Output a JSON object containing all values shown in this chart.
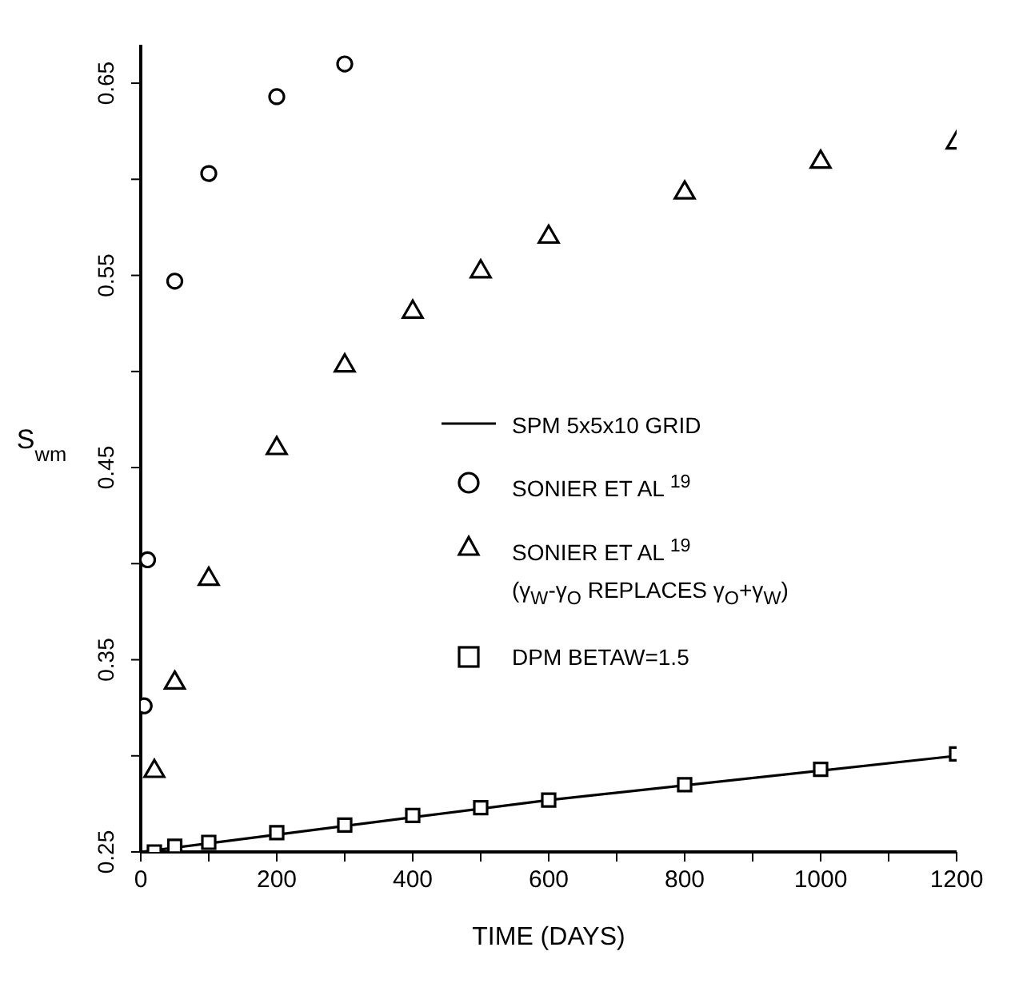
{
  "chart_data": {
    "type": "scatter",
    "xlabel": "TIME  (DAYS)",
    "ylabel": "S$_{wm}$",
    "xlim": [
      0,
      1200
    ],
    "ylim": [
      0.25,
      0.67
    ],
    "xticks": [
      0,
      {
        "value": 100,
        "label": null
      },
      200,
      {
        "value": 300,
        "label": null
      },
      400,
      {
        "value": 500,
        "label": null
      },
      600,
      {
        "value": 700,
        "label": null
      },
      800,
      {
        "value": 900,
        "label": null
      },
      1000,
      {
        "value": 1100,
        "label": null
      },
      1200
    ],
    "yticks": [
      {
        "value": 0.25,
        "label": "0.25"
      },
      {
        "value": 0.3,
        "label": null
      },
      {
        "value": 0.35,
        "label": "0.35"
      },
      {
        "value": 0.4,
        "label": null
      },
      {
        "value": 0.45,
        "label": "0.45"
      },
      {
        "value": 0.5,
        "label": null
      },
      {
        "value": 0.55,
        "label": "0.55"
      },
      {
        "value": 0.6,
        "label": null
      },
      {
        "value": 0.65,
        "label": "0.65"
      }
    ],
    "grid": false,
    "legend": "center right",
    "series": [
      {
        "name": "SPM 5x5x10 GRID",
        "type": "line",
        "marker": "none",
        "line_style": "solid",
        "color": "#000000",
        "x": [
          0,
          200,
          600,
          1200
        ],
        "values": [
          0.25,
          0.259,
          0.277,
          0.3
        ]
      },
      {
        "name": "SONIER ET AL $^{19}$",
        "marker": "circle",
        "color": "#000000",
        "x": [
          5,
          10,
          50,
          100,
          200,
          300
        ],
        "values": [
          0.326,
          0.402,
          0.547,
          0.603,
          0.643,
          0.66
        ]
      },
      {
        "name": "SONIER ET AL $^{19}$\n(γ$_{W}$-γ$_{O}$ REPLACES γ$_{O}$+γ$_{W}$)",
        "marker": "triangle",
        "color": "#000000",
        "x": [
          20,
          50,
          100,
          200,
          300,
          400,
          500,
          600,
          800,
          1000,
          1200
        ],
        "values": [
          0.292,
          0.338,
          0.392,
          0.46,
          0.503,
          0.531,
          0.552,
          0.57,
          0.593,
          0.609,
          0.619
        ]
      },
      {
        "name": "DPM BETAW=1.5",
        "marker": "square",
        "color": "#000000",
        "x": [
          20,
          50,
          100,
          200,
          300,
          400,
          500,
          600,
          800,
          1000,
          1200
        ],
        "values": [
          0.25,
          0.253,
          0.255,
          0.26,
          0.264,
          0.269,
          0.273,
          0.277,
          0.285,
          0.293,
          0.301
        ]
      }
    ]
  }
}
